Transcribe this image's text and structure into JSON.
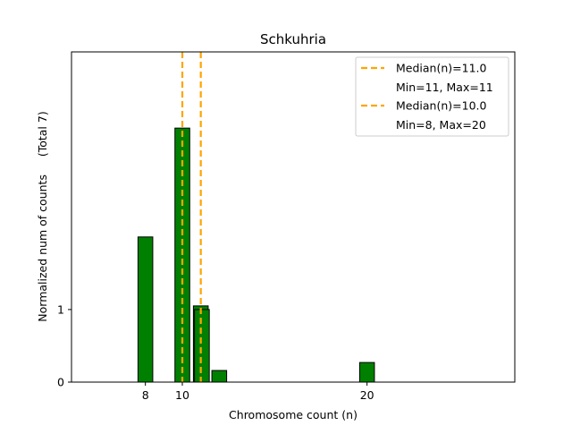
{
  "chart_data": {
    "type": "bar",
    "title": "Schkuhria",
    "xlabel": "Chromosome count (n)",
    "ylabel": "Normalized num of counts     (Total 7)",
    "xlim": [
      4,
      28
    ],
    "ylim": [
      0,
      4.55
    ],
    "x_ticks": [
      8,
      10,
      20
    ],
    "y_ticks": [
      0,
      1
    ],
    "bar_color": "#008000",
    "bar_edge_color": "#000000",
    "median_color": "#FFA500",
    "grid": false,
    "legend_position": "top-right",
    "series": [
      {
        "bars": [
          {
            "x": 8,
            "value": 2.0
          },
          {
            "x": 10,
            "value": 3.5
          },
          {
            "x": 11,
            "value": 1.05
          },
          {
            "x": 12,
            "value": 0.16
          },
          {
            "x": 20,
            "value": 0.27
          }
        ]
      },
      {
        "bars": [
          {
            "x": 11,
            "value": 1.0
          }
        ]
      }
    ],
    "medians": [
      10.0,
      11.0
    ],
    "baseline": {
      "x_start": 4,
      "x_end": 18.5
    },
    "legend": [
      {
        "type": "line",
        "label": "Median(n)=11.0"
      },
      {
        "type": "text",
        "label": "Min=11, Max=11"
      },
      {
        "type": "line",
        "label": "Median(n)=10.0"
      },
      {
        "type": "text",
        "label": "Min=8, Max=20"
      }
    ]
  }
}
